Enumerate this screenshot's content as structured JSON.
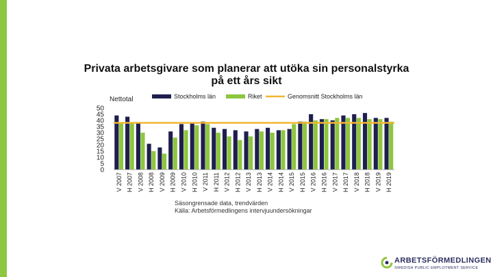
{
  "title": "Privata arbetsgivare som planerar att utöka sin personalstyrka på ett års sikt",
  "caption_lines": [
    "Säsongrensade data, trendvärden",
    "Källa: Arbetsförmedlingens intervjuundersökningar"
  ],
  "brand": {
    "name": "ARBETSFÖRMEDLINGEN",
    "tagline": "SWEDISH PUBLIC EMPLOYMENT SERVICE",
    "accent_color": "#8dc63f"
  },
  "chart_data": {
    "type": "bar",
    "ylabel": "Nettotal",
    "ylim": [
      0,
      50
    ],
    "yticks": [
      50,
      45,
      40,
      35,
      30,
      25,
      20,
      15,
      10,
      5,
      0
    ],
    "categories": [
      "V 2007",
      "H 2007",
      "V 2008",
      "H 2008",
      "V 2009",
      "H 2009",
      "V 2010",
      "H 2010",
      "V 2011",
      "H 2011",
      "V 2012",
      "H 2012",
      "V 2013",
      "H 2013",
      "V 2014",
      "H 2014",
      "V 2015",
      "H 2015",
      "V 2016",
      "H 2016",
      "V 2017",
      "H 2017",
      "V 2018",
      "H 2018",
      "V 2019",
      "H 2019"
    ],
    "series": [
      {
        "name": "Stockholms län",
        "color": "#1e1f4e",
        "values": [
          44,
          43,
          38,
          21,
          18,
          31,
          37,
          38,
          39,
          34,
          33,
          32,
          31,
          33,
          34,
          32,
          33,
          39,
          45,
          41,
          40,
          44,
          45,
          46,
          42,
          42
        ]
      },
      {
        "name": "Riket",
        "color": "#8dc63f",
        "values": [
          38,
          38,
          30,
          15,
          13,
          26,
          32,
          36,
          37,
          30,
          27,
          24,
          27,
          31,
          30,
          32,
          37,
          39,
          40,
          41,
          42,
          42,
          42,
          41,
          41,
          39
        ]
      }
    ],
    "reference_line": {
      "name": "Genomsnitt Stockholms län",
      "color": "#f2b632",
      "value": 38
    },
    "legend_position": "top"
  }
}
